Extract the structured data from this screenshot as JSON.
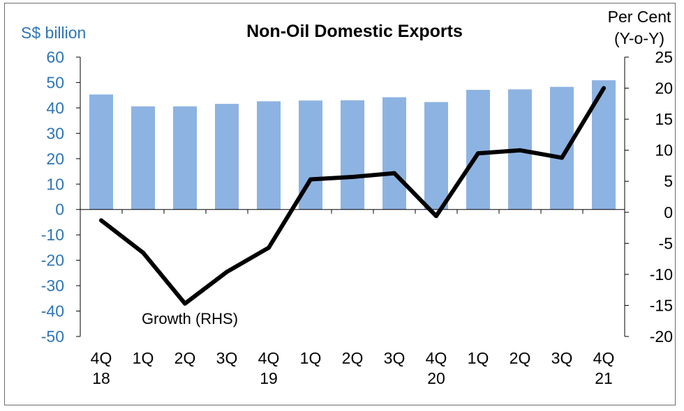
{
  "chart_data": {
    "type": "bar+line",
    "title": "Non-Oil Domestic Exports",
    "left_axis": {
      "label": "S$ billion",
      "range": [
        -50,
        60
      ],
      "ticks": [
        60,
        50,
        40,
        30,
        20,
        10,
        0,
        -10,
        -20,
        -30,
        -40,
        -50
      ],
      "color": "#2e75b6"
    },
    "right_axis": {
      "label_lines": [
        "Per Cent",
        "(Y-o-Y)"
      ],
      "range": [
        -20,
        25
      ],
      "ticks": [
        25,
        20,
        15,
        10,
        5,
        0,
        -5,
        -10,
        -15,
        -20
      ]
    },
    "categories": [
      {
        "q": "4Q",
        "year": "18"
      },
      {
        "q": "1Q",
        "year": ""
      },
      {
        "q": "2Q",
        "year": ""
      },
      {
        "q": "3Q",
        "year": ""
      },
      {
        "q": "4Q",
        "year": "19"
      },
      {
        "q": "1Q",
        "year": ""
      },
      {
        "q": "2Q",
        "year": ""
      },
      {
        "q": "3Q",
        "year": ""
      },
      {
        "q": "4Q",
        "year": "20"
      },
      {
        "q": "1Q",
        "year": ""
      },
      {
        "q": "2Q",
        "year": ""
      },
      {
        "q": "3Q",
        "year": ""
      },
      {
        "q": "4Q",
        "year": "21"
      }
    ],
    "series": [
      {
        "kind": "bar",
        "axis": "left",
        "color": "#8db3e2",
        "values": [
          45.3,
          40.6,
          40.6,
          41.6,
          42.6,
          42.9,
          43.0,
          44.2,
          42.3,
          47.1,
          47.3,
          48.3,
          50.9
        ]
      },
      {
        "name": "Growth (RHS)",
        "kind": "line",
        "axis": "right",
        "color": "#000000",
        "values": [
          -1.3,
          -6.5,
          -14.7,
          -9.6,
          -5.7,
          5.3,
          5.7,
          6.3,
          -0.6,
          9.5,
          10.0,
          8.8,
          20.0
        ]
      }
    ],
    "annotation": "Growth (RHS)",
    "grid": false,
    "legend": "none"
  }
}
